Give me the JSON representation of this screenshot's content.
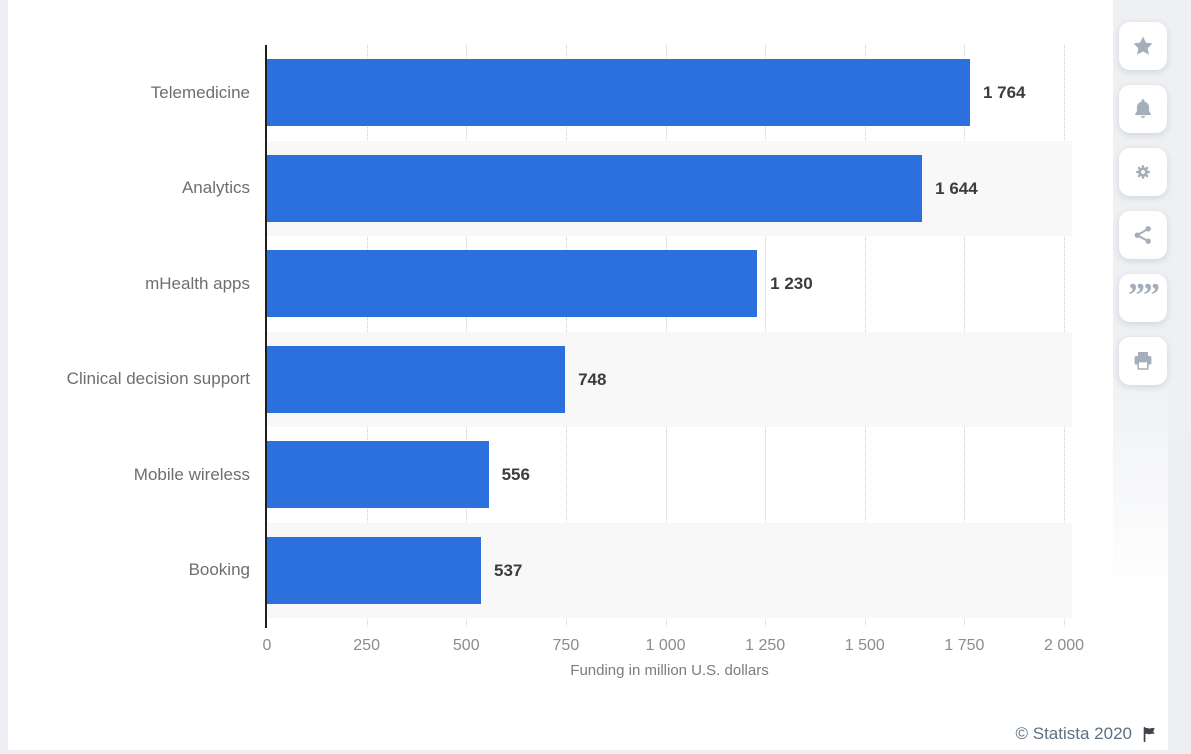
{
  "chart_data": {
    "type": "bar",
    "orientation": "horizontal",
    "title": "",
    "categories": [
      "Telemedicine",
      "Analytics",
      "mHealth apps",
      "Clinical decision support",
      "Mobile wireless",
      "Booking"
    ],
    "values": [
      1764,
      1644,
      1230,
      748,
      556,
      537
    ],
    "value_labels": [
      "1 764",
      "1 644",
      "1 230",
      "748",
      "556",
      "537"
    ],
    "xlabel": "Funding in million U.S. dollars",
    "ylabel": "",
    "xlim": [
      0,
      2020
    ],
    "ticks": [
      0,
      250,
      500,
      750,
      1000,
      1250,
      1500,
      1750,
      2000
    ],
    "tick_labels": [
      "0",
      "250",
      "500",
      "750",
      "1 000",
      "1 250",
      "1 500",
      "1 750",
      "2 000"
    ],
    "grid": "vertical-dotted",
    "legend": "none",
    "stripe_rows": [
      1,
      3,
      5
    ],
    "colors": {
      "bar": "#2B70DC",
      "stripe": "#f8f8f9",
      "axis_line": "#1f1f1f",
      "gridline": "#c9ccd1",
      "category_label": "#6e6e6e",
      "value_label": "#3c3c3c",
      "tick_label": "#8c8c8c",
      "axis_label": "#7c7c7c",
      "credit": "#5d7183",
      "icon": "#a5afbb",
      "card-bg": "#ffffff"
    }
  },
  "footer": {
    "credit": "© Statista 2020",
    "flag_icon": "report-flag-icon"
  },
  "toolbar": {
    "icons": [
      {
        "name": "star-icon"
      },
      {
        "name": "bell-icon"
      },
      {
        "name": "gear-icon"
      },
      {
        "name": "share-icon"
      },
      {
        "name": "quote-icon",
        "glyph": "””"
      },
      {
        "name": "print-icon"
      }
    ]
  }
}
